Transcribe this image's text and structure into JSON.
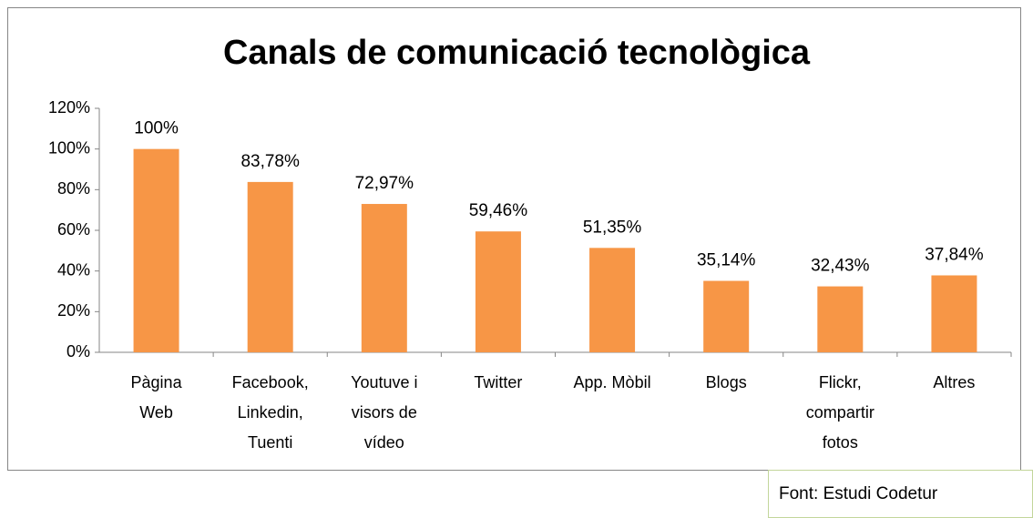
{
  "chart_data": {
    "type": "bar",
    "title": "Canals de comunicació tecnològica",
    "categories": [
      "Pàgina Web",
      "Facebook, Linkedin, Tuenti",
      "Youtuve i visors de vídeo",
      "Twitter",
      "App. Mòbil",
      "Blogs",
      "Flickr, compartir fotos",
      "Altres"
    ],
    "values": [
      100,
      83.78,
      72.97,
      59.46,
      51.35,
      35.14,
      32.43,
      37.84
    ],
    "value_labels": [
      "100%",
      "83,78%",
      "72,97%",
      "59,46%",
      "51,35%",
      "35,14%",
      "32,43%",
      "37,84%"
    ],
    "color": "#f79646",
    "ylim": [
      0,
      120
    ],
    "yticks": [
      {
        "value": 0,
        "label": "0%"
      },
      {
        "value": 20,
        "label": "20%"
      },
      {
        "value": 40,
        "label": "40%"
      },
      {
        "value": 60,
        "label": "60%"
      },
      {
        "value": 80,
        "label": "80%"
      },
      {
        "value": 100,
        "label": "100%"
      },
      {
        "value": 120,
        "label": "120%"
      }
    ],
    "grid": false
  },
  "source": "Font: Estudi Codetur"
}
